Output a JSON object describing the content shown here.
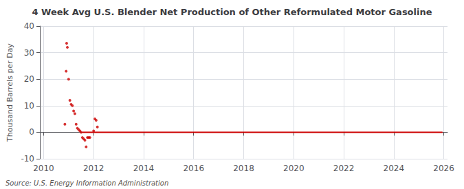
{
  "chart_data": {
    "type": "scatter",
    "title": "4 Week Avg U.S. Blender Net Production of Other Reformulated Motor Gasoline",
    "ylabel": "Thousand Barrels per Day",
    "annotations": [
      "Source: U.S. Energy Information Administration"
    ],
    "xlim": [
      2009.85,
      2026.15
    ],
    "ylim": [
      -10,
      40
    ],
    "xticks": [
      2010,
      2012,
      2014,
      2016,
      2018,
      2020,
      2022,
      2024,
      2026
    ],
    "yticks": [
      -10,
      0,
      10,
      20,
      30,
      40
    ],
    "grid": true,
    "series": [
      {
        "type": "scatter",
        "color": "#cc0000",
        "x": [
          2010.85,
          2010.9,
          2010.92,
          2010.95,
          2011.0,
          2011.05,
          2011.1,
          2011.15,
          2011.2,
          2011.25,
          2011.3,
          2011.35,
          2011.4,
          2011.45,
          2011.5,
          2011.55,
          2011.6,
          2011.65,
          2011.7,
          2011.75,
          2011.8,
          2011.85,
          2012.0,
          2012.05,
          2012.1,
          2012.15
        ],
        "values": [
          3.0,
          23.0,
          33.5,
          32.0,
          20.0,
          12.0,
          10.5,
          10.0,
          8.0,
          7.0,
          3.0,
          1.5,
          1.0,
          0.5,
          0.0,
          -2.0,
          -2.5,
          -3.0,
          -5.5,
          -2.0,
          -2.0,
          -2.0,
          0.5,
          5.0,
          4.5,
          2.0
        ]
      },
      {
        "type": "line",
        "color": "#cc0000",
        "x": [
          2011.55,
          2025.95
        ],
        "values": [
          0.0,
          0.0
        ]
      }
    ]
  }
}
